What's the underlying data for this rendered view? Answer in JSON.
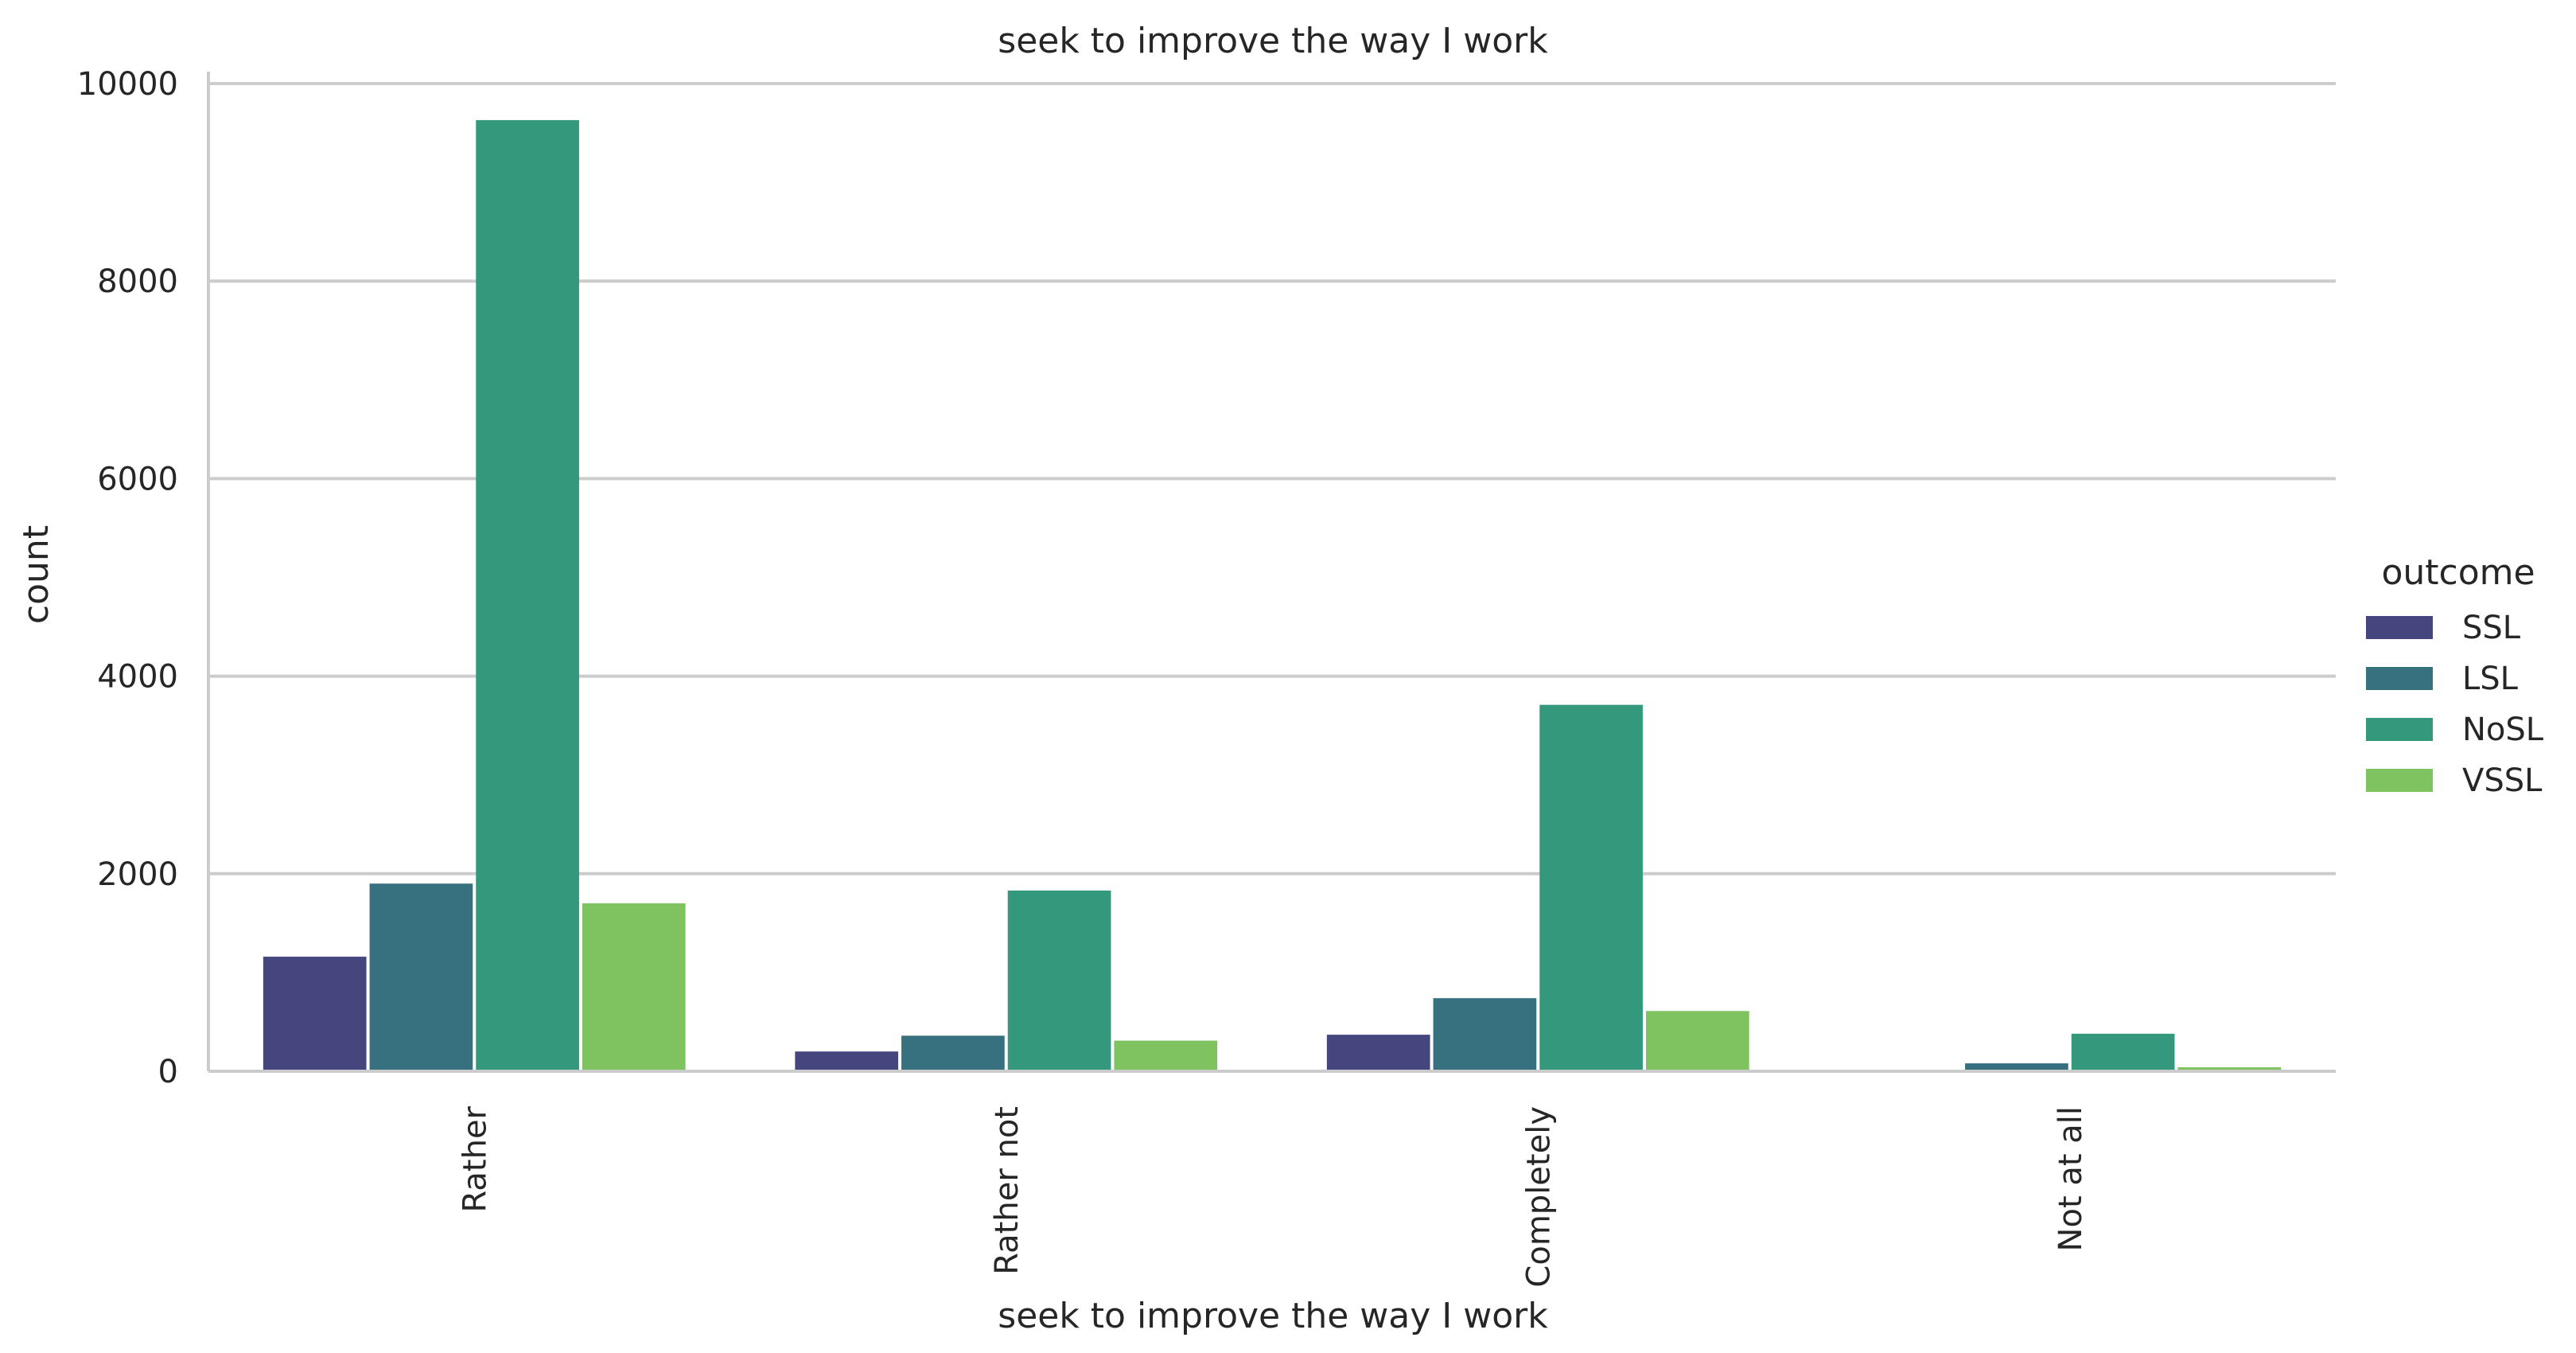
{
  "chart_data": {
    "type": "bar",
    "title": "seek to improve the way I work",
    "xlabel": "seek to improve the way I work",
    "ylabel": "count",
    "categories": [
      "Rather",
      "Rather not",
      "Completely",
      "Not at all"
    ],
    "series": [
      {
        "name": "SSL",
        "color": "#46467f",
        "values": [
          1160,
          200,
          370,
          0
        ]
      },
      {
        "name": "LSL",
        "color": "#37717f",
        "values": [
          1900,
          360,
          740,
          80
        ]
      },
      {
        "name": "NoSL",
        "color": "#34997c",
        "values": [
          9630,
          1830,
          3710,
          380
        ]
      },
      {
        "name": "VSSL",
        "color": "#7fc260",
        "values": [
          1700,
          310,
          610,
          40
        ]
      }
    ],
    "ylim": [
      0,
      10000
    ],
    "yticks": [
      0,
      2000,
      4000,
      6000,
      8000,
      10000
    ],
    "grid": "horizontal",
    "legend": {
      "title": "outcome",
      "placement": "right"
    }
  }
}
